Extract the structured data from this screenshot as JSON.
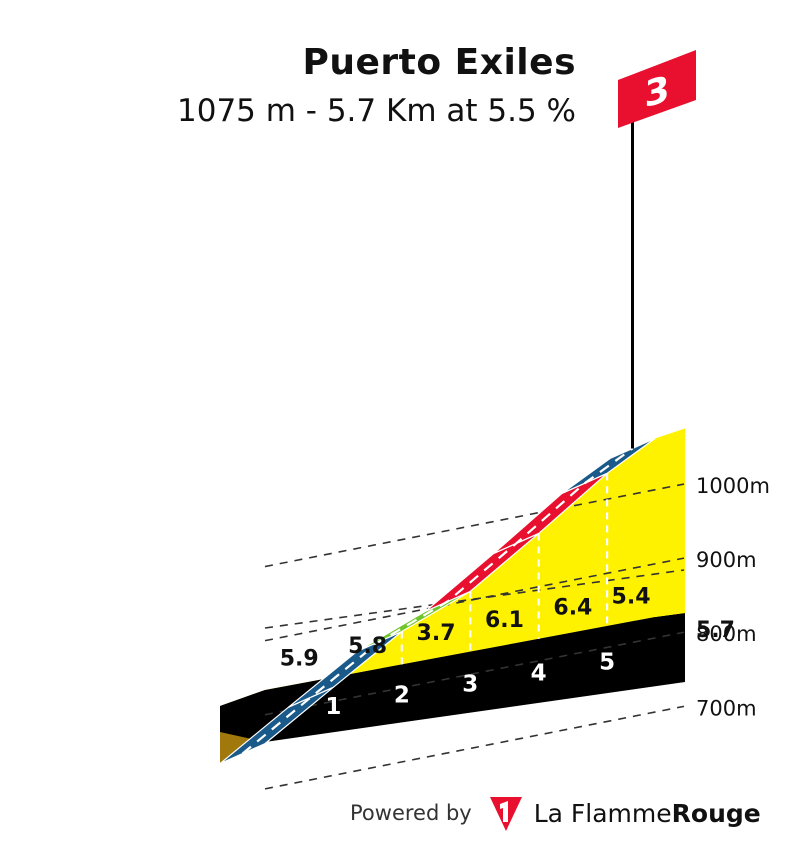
{
  "title": "Puerto Exiles",
  "subtitle": "1075 m - 5.7 Km at 5.5 %",
  "category_badge": "3",
  "footer": {
    "powered_by": "Powered by",
    "brand_part1": "La Flamme",
    "brand_part2": "Rouge",
    "logo_icon": "flamme-rouge-logo-icon"
  },
  "colors": {
    "fill": "#fff200",
    "side": "#a0780c",
    "base": "#000000",
    "blue": "#1a5a8a",
    "green": "#6ec42a",
    "red": "#e8102e",
    "badge": "#e8102e"
  },
  "chart_data": {
    "type": "area",
    "title": "Puerto Exiles",
    "subtitle": "1075 m - 5.7 Km at 5.5 %",
    "x_unit": "km",
    "y_unit": "m",
    "total_distance_km": 5.7,
    "km_markers": [
      "1",
      "2",
      "3",
      "4",
      "5"
    ],
    "distance_end_label": "5.7",
    "elevation_ticks": [
      "700m",
      "800m",
      "900m",
      "1000m"
    ],
    "elevation_tick_values": [
      700,
      800,
      900,
      1000
    ],
    "gradients": [
      {
        "from_km": 0,
        "to_km": 1,
        "gradient": 5.9,
        "label": "5.9",
        "color": "blue"
      },
      {
        "from_km": 1,
        "to_km": 2,
        "gradient": 5.8,
        "label": "5.8",
        "color": "blue"
      },
      {
        "from_km": 2,
        "to_km": 3,
        "gradient": 3.7,
        "label": "3.7",
        "color": "green"
      },
      {
        "from_km": 3,
        "to_km": 4,
        "gradient": 6.1,
        "label": "6.1",
        "color": "red"
      },
      {
        "from_km": 4,
        "to_km": 5,
        "gradient": 6.4,
        "label": "6.4",
        "color": "red"
      },
      {
        "from_km": 5,
        "to_km": 5.7,
        "gradient": 5.4,
        "label": "5.4",
        "color": "blue"
      }
    ],
    "elevation_profile": [
      {
        "km": 0,
        "elevation": 761
      },
      {
        "km": 1,
        "elevation": 820
      },
      {
        "km": 2,
        "elevation": 878
      },
      {
        "km": 3,
        "elevation": 915
      },
      {
        "km": 4,
        "elevation": 976
      },
      {
        "km": 5,
        "elevation": 1040
      },
      {
        "km": 5.7,
        "elevation": 1075
      }
    ]
  }
}
